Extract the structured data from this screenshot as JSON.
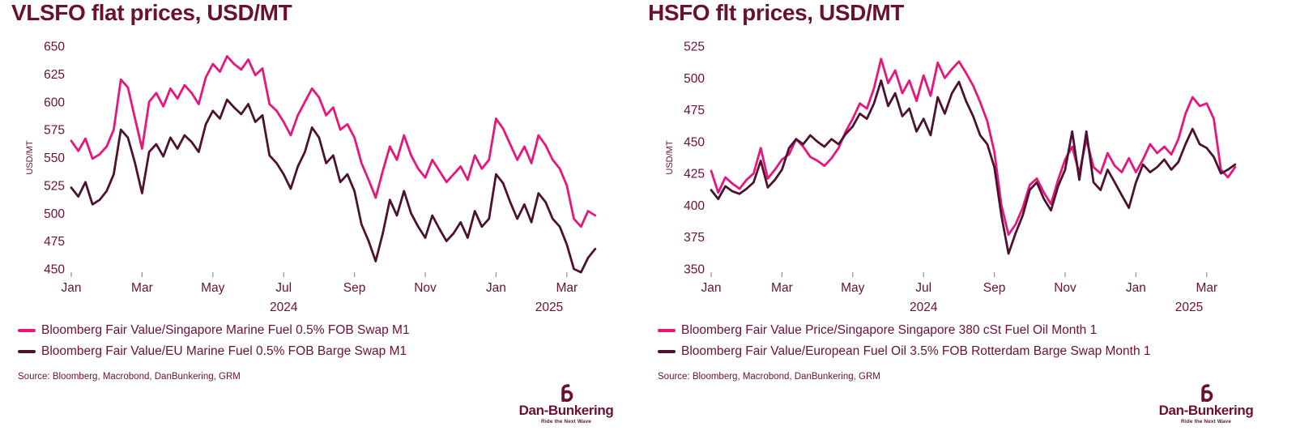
{
  "page": {
    "background": "#ffffff"
  },
  "colors": {
    "pink": "#E8157C",
    "dark_maroon": "#4C122F",
    "text_maroon": "#6B1033",
    "tick_gray": "#8f8f8f"
  },
  "logo": {
    "name": "Dan-Bunkering",
    "tagline": "Ride the Next Wave"
  },
  "chart_data": [
    {
      "type": "line",
      "title": "VLSFO flat prices, USD/MT",
      "ylabel": "USD/MT",
      "ylim": [
        450,
        650
      ],
      "yticks": [
        650,
        625,
        600,
        575,
        550,
        525,
        500,
        475,
        450
      ],
      "xticks": [
        "Jan",
        "Mar",
        "May",
        "Jul",
        "Sep",
        "Nov",
        "Jan",
        "Mar"
      ],
      "xtick_months": [
        0,
        2,
        4,
        6,
        8,
        10,
        12,
        14
      ],
      "year_labels": [
        {
          "label": "2024",
          "month": 6
        },
        {
          "label": "2025",
          "month": 13.5
        }
      ],
      "x_start": 0,
      "x_step": 0.2,
      "grid": false,
      "legend_position": "bottom-left",
      "legend": [
        {
          "label": "Bloomberg Fair Value/Singapore Marine Fuel 0.5% FOB Swap M1",
          "color": "#E8157C"
        },
        {
          "label": "Bloomberg Fair Value/EU Marine Fuel 0.5% FOB Barge Swap M1",
          "color": "#4C122F"
        }
      ],
      "source": "Source: Bloomberg, Macrobond, DanBunkering, GRM",
      "series": [
        {
          "id": "singapore-vlsfo",
          "name": "Bloomberg Fair Value/Singapore Marine Fuel 0.5% FOB Swap M1",
          "color": "#E8157C",
          "values": [
            565,
            556,
            567,
            549,
            553,
            560,
            575,
            620,
            613,
            585,
            558,
            600,
            608,
            596,
            612,
            603,
            615,
            608,
            598,
            622,
            634,
            627,
            641,
            634,
            629,
            638,
            624,
            630,
            598,
            592,
            582,
            570,
            588,
            600,
            612,
            604,
            588,
            595,
            575,
            580,
            568,
            545,
            530,
            514,
            538,
            560,
            548,
            570,
            552,
            540,
            532,
            548,
            538,
            528,
            535,
            542,
            530,
            552,
            540,
            548,
            585,
            576,
            562,
            548,
            560,
            545,
            570,
            561,
            548,
            540,
            525,
            495,
            488,
            502,
            498
          ]
        },
        {
          "id": "eu-vlsfo",
          "name": "Bloomberg Fair Value/EU Marine Fuel 0.5% FOB Barge Swap M1",
          "color": "#4C122F",
          "values": [
            523,
            515,
            528,
            508,
            512,
            520,
            535,
            575,
            568,
            545,
            518,
            555,
            562,
            551,
            568,
            558,
            570,
            564,
            555,
            580,
            592,
            585,
            602,
            595,
            589,
            598,
            582,
            588,
            552,
            545,
            535,
            522,
            542,
            555,
            577,
            568,
            545,
            552,
            528,
            535,
            520,
            490,
            475,
            457,
            482,
            512,
            498,
            520,
            500,
            488,
            478,
            498,
            486,
            475,
            482,
            492,
            478,
            502,
            488,
            495,
            535,
            527,
            510,
            495,
            508,
            492,
            518,
            510,
            495,
            488,
            472,
            450,
            447,
            460,
            468
          ]
        }
      ]
    },
    {
      "type": "line",
      "title": "HSFO flt prices, USD/MT",
      "ylabel": "USD/MT",
      "ylim": [
        350,
        525
      ],
      "yticks": [
        525,
        500,
        475,
        450,
        425,
        400,
        375,
        350
      ],
      "xticks": [
        "Jan",
        "Mar",
        "May",
        "Jul",
        "Sep",
        "Nov",
        "Jan",
        "Mar"
      ],
      "xtick_months": [
        0,
        2,
        4,
        6,
        8,
        10,
        12,
        14
      ],
      "year_labels": [
        {
          "label": "2024",
          "month": 6
        },
        {
          "label": "2025",
          "month": 13.5
        }
      ],
      "x_start": 0,
      "x_step": 0.2,
      "grid": false,
      "legend_position": "bottom-left",
      "legend": [
        {
          "label": "Bloomberg Fair Value Price/Singapore Singapore 380 cSt Fuel Oil Month 1",
          "color": "#E8157C"
        },
        {
          "label": "Bloomberg Fair Value/European Fuel Oil 3.5% FOB Rotterdam Barge Swap Month 1",
          "color": "#4C122F"
        }
      ],
      "source": "Source: Bloomberg, Macrobond, DanBunkering, GRM",
      "series": [
        {
          "id": "singapore-380cst",
          "name": "Bloomberg Fair Value Price/Singapore Singapore 380 cSt Fuel Oil Month 1",
          "color": "#E8157C",
          "values": [
            427,
            410,
            422,
            417,
            413,
            420,
            425,
            445,
            421,
            428,
            436,
            440,
            452,
            446,
            438,
            435,
            431,
            437,
            445,
            458,
            468,
            480,
            476,
            492,
            515,
            496,
            506,
            488,
            498,
            482,
            502,
            486,
            512,
            500,
            507,
            513,
            504,
            494,
            481,
            466,
            442,
            400,
            377,
            385,
            398,
            416,
            421,
            410,
            401,
            420,
            436,
            446,
            425,
            452,
            430,
            425,
            441,
            431,
            426,
            437,
            426,
            436,
            448,
            441,
            446,
            440,
            452,
            472,
            485,
            478,
            480,
            468,
            428,
            422,
            430
          ]
        },
        {
          "id": "rotterdam-35",
          "name": "Bloomberg Fair Value/European Fuel Oil 3.5% FOB Rotterdam Barge Swap Month 1",
          "color": "#4C122F",
          "values": [
            412,
            405,
            415,
            411,
            409,
            413,
            418,
            435,
            414,
            420,
            428,
            445,
            452,
            448,
            455,
            450,
            446,
            452,
            448,
            456,
            462,
            472,
            468,
            480,
            498,
            478,
            488,
            470,
            476,
            458,
            468,
            455,
            485,
            472,
            488,
            497,
            482,
            470,
            455,
            448,
            430,
            392,
            362,
            378,
            392,
            412,
            418,
            405,
            396,
            415,
            428,
            458,
            420,
            458,
            418,
            412,
            428,
            418,
            408,
            398,
            418,
            432,
            426,
            430,
            436,
            428,
            434,
            448,
            460,
            448,
            445,
            438,
            425,
            428,
            432
          ]
        }
      ]
    }
  ]
}
